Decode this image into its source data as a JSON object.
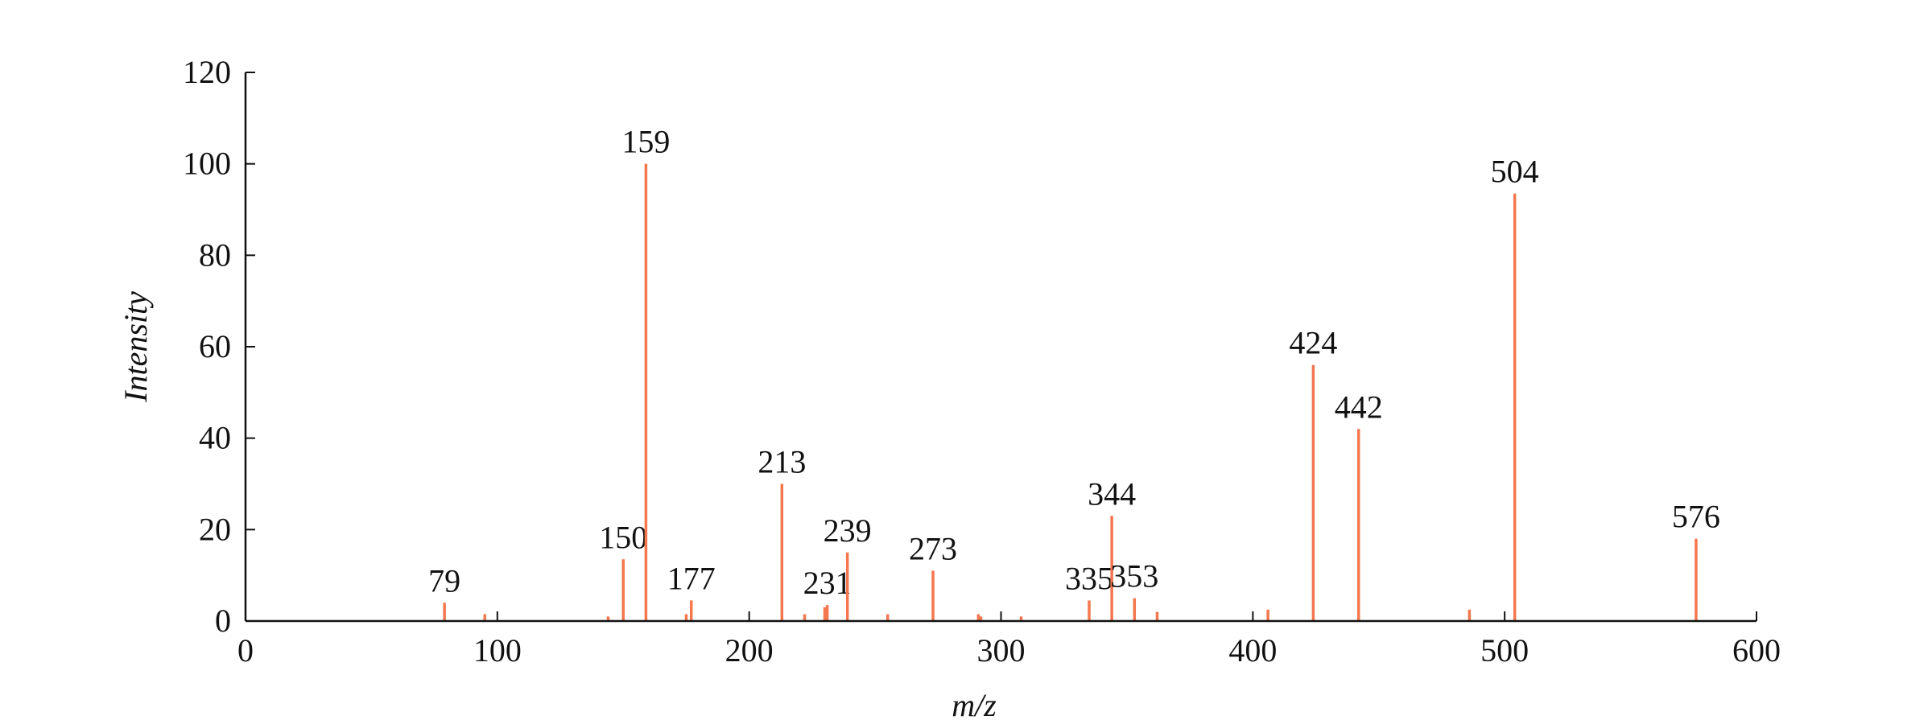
{
  "chart_data": {
    "type": "stem",
    "xlabel": "m/z",
    "ylabel": "Intensity",
    "color": "#f4774f",
    "x": [
      79,
      95,
      144,
      150,
      159,
      175,
      177,
      213,
      222,
      230,
      231,
      239,
      255,
      273,
      291,
      292,
      308,
      335,
      344,
      353,
      362,
      406,
      424,
      442,
      486,
      504,
      576
    ],
    "values": [
      4,
      1.5,
      1,
      13.5,
      100,
      1.5,
      4.5,
      30,
      1.5,
      3,
      3.5,
      15,
      1.5,
      11,
      1.5,
      1,
      1,
      4.5,
      23,
      5,
      2,
      2.5,
      56,
      42,
      2.5,
      93.5,
      18
    ],
    "peak_labels": [
      "79",
      null,
      null,
      "150",
      "159",
      null,
      "177",
      "213",
      null,
      null,
      "231",
      "239",
      null,
      "273",
      null,
      null,
      null,
      "335",
      "344",
      "353",
      null,
      null,
      "424",
      "442",
      null,
      "504",
      "576"
    ],
    "xlim": [
      0,
      600
    ],
    "xticks": [
      0,
      100,
      200,
      300,
      400,
      500,
      600
    ],
    "ylim": [
      0,
      120
    ],
    "yticks": [
      0,
      20,
      40,
      60,
      80,
      100,
      120
    ]
  }
}
